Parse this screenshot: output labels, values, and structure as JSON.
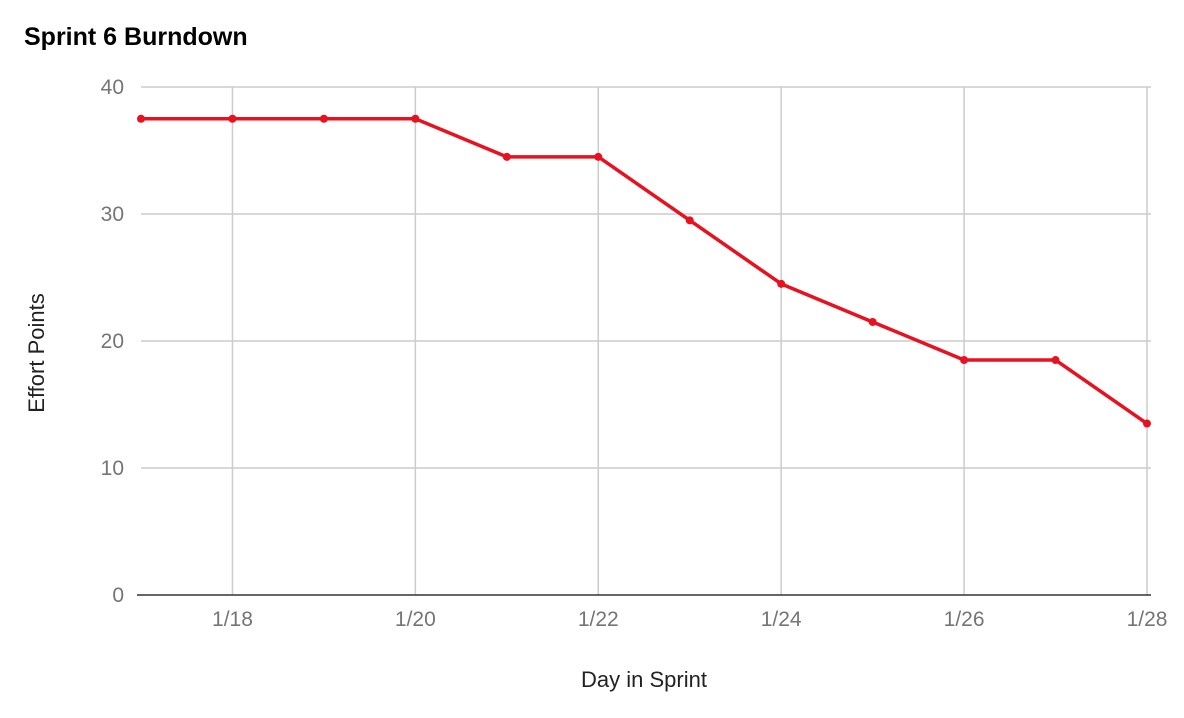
{
  "chart_data": {
    "type": "line",
    "title": "Sprint 6 Burndown",
    "xlabel": "Day in Sprint",
    "ylabel": "Effort Points",
    "x": [
      "1/17",
      "1/18",
      "1/19",
      "1/20",
      "1/21",
      "1/22",
      "1/23",
      "1/24",
      "1/25",
      "1/26",
      "1/27",
      "1/28"
    ],
    "x_tick_labels": [
      "1/18",
      "1/20",
      "1/22",
      "1/24",
      "1/26",
      "1/28"
    ],
    "y_ticks": [
      0,
      10,
      20,
      30,
      40
    ],
    "ylim": [
      0,
      40
    ],
    "grid": true,
    "legend": "none",
    "series": [
      {
        "color": "#e8111f",
        "values": [
          37.5,
          37.5,
          37.5,
          37.5,
          34.5,
          34.5,
          29.5,
          24.5,
          21.5,
          18.5,
          18.5,
          13.5
        ]
      }
    ]
  }
}
